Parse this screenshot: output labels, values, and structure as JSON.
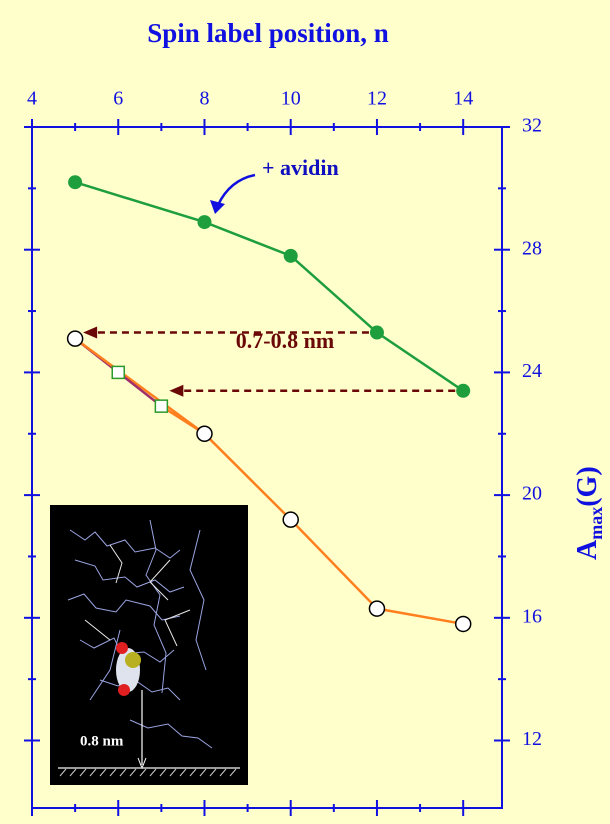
{
  "chart_data": {
    "type": "line",
    "title": "Spin label position, n",
    "y_label": "A",
    "y_label_sub": "max",
    "y_label_unit": "(G)",
    "xlim": [
      4,
      14.9
    ],
    "xticks": [
      4,
      6,
      8,
      10,
      12,
      14
    ],
    "xminorticks": [
      5,
      7,
      9,
      11,
      13
    ],
    "ylim": [
      9.8,
      32
    ],
    "yticks": [
      12,
      16,
      20,
      24,
      28,
      32
    ],
    "yminorticks": [
      14,
      18,
      22,
      26,
      30
    ],
    "series": [
      {
        "name": "+ avidin",
        "color": "#1e9e3c",
        "x": [
          5,
          8,
          10,
          12,
          14
        ],
        "values": [
          30.2,
          28.9,
          27.8,
          25.3,
          23.4
        ],
        "marker": "filled-circle"
      },
      {
        "color": "#ff7f1e",
        "x": [
          5,
          8,
          10,
          12,
          14
        ],
        "values": [
          25.1,
          22,
          19.2,
          16.3,
          15.8
        ],
        "marker": "open-circle"
      },
      {
        "color": "#a0306a",
        "x": [
          6,
          7
        ],
        "values": [
          24,
          22.9
        ],
        "marker": "open-square"
      }
    ],
    "annotations": {
      "distance": "0.7-0.8 nm",
      "inset_distance": "0.8 nm"
    }
  }
}
